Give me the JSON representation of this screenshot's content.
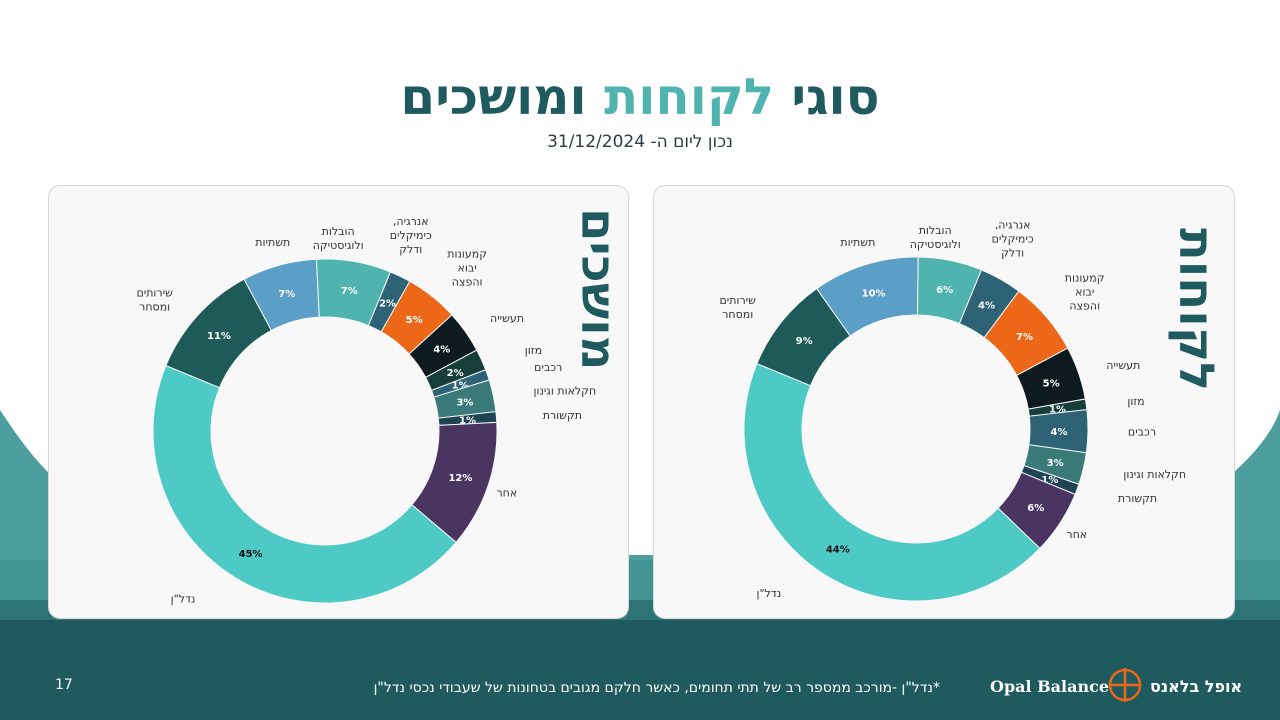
{
  "title": {
    "main": "סוגי",
    "accent": "לקוחות",
    "rest": "ומושכים"
  },
  "subtitle": "נכון ליום ה- 31/12/2024",
  "panels": {
    "left_title": "מושכים",
    "right_title": "לקוחות"
  },
  "footnote": "*נדל\"ן -מורכב ממספר רב של תתי תחומים, כאשר חלקם מגובים בטחונות של שעבודי נכסי נדל\"ן",
  "page_number": "17",
  "logo": {
    "en": "Opal Balance",
    "he": "אופל בלאנס"
  },
  "colors": {
    "title_dark": "#1e5a5e",
    "title_accent": "#4fb3b0",
    "footer_bg": "#1e5a5e"
  },
  "chart_data": [
    {
      "type": "pie",
      "name": "מושכים",
      "categories": [
        "אנרגיה, כימיקלים ודלק",
        "קמעונות יבוא והפצה",
        "תעשייה",
        "מזון",
        "רכבים",
        "חקלאות וגינון",
        "תקשורת",
        "אחר",
        "נדל\"ן",
        "שירותים ומסחר",
        "תשתיות",
        "הובלות ולוגיסטיקה"
      ],
      "label_lines": [
        [
          "אנרגיה,",
          "כימיקלים",
          "ודלק"
        ],
        [
          "קמעונות",
          "יבוא",
          "והפצה"
        ],
        [
          "תעשייה"
        ],
        [
          "מזון"
        ],
        [
          "רכבים"
        ],
        [
          "חקלאות וגינון"
        ],
        [
          "תקשורת"
        ],
        [
          "אחר"
        ],
        [
          "נדל\"ן"
        ],
        [
          "שירותים",
          "ומסחר"
        ],
        [
          "תשתיות"
        ],
        [
          "הובלות",
          "ולוגיסטיקה"
        ]
      ],
      "values": [
        2,
        5,
        4,
        2,
        1,
        3,
        1,
        12,
        45,
        11,
        7,
        7
      ],
      "data_labels": [
        "2%",
        "5%",
        "4%",
        "2%",
        "1%",
        "3%",
        "1%",
        "12%",
        "45%",
        "11%",
        "7%",
        "7%"
      ],
      "colors": [
        "#2e6377",
        "#ec6717",
        "#0f1a20",
        "#173f3a",
        "#2e6377",
        "#3a7a78",
        "#1e4454",
        "#4a3462",
        "#4ecac6",
        "#1e5a58",
        "#5b9ec6",
        "#4fb3b0"
      ],
      "label_colors": [
        "#ffffff",
        "#ffffff",
        "#ffffff",
        "#ffffff",
        "#ffffff",
        "#ffffff",
        "#ffffff",
        "#ffffff",
        "#111111",
        "#ffffff",
        "#ffffff",
        "#ffffff"
      ]
    },
    {
      "type": "pie",
      "name": "לקוחות",
      "categories": [
        "אנרגיה, כימיקלים ודלק",
        "קמעונות יבוא והפצה",
        "תעשייה",
        "מזון",
        "רכבים",
        "חקלאות וגינון",
        "תקשורת",
        "אחר",
        "נדל\"ן",
        "שירותים ומסחר",
        "תשתיות",
        "הובלות ולוגיסטיקה"
      ],
      "label_lines": [
        [
          "אנרגיה,",
          "כימיקלים",
          "ודלק"
        ],
        [
          "קמעונות",
          "יבוא",
          "והפצה"
        ],
        [
          "תעשייה"
        ],
        [
          "מזון"
        ],
        [
          "רכבים"
        ],
        [
          "חקלאות וגינון"
        ],
        [
          "תקשורת"
        ],
        [
          "אחר"
        ],
        [
          "נדל\"ן"
        ],
        [
          "שירותים",
          "ומסחר"
        ],
        [
          "תשתיות"
        ],
        [
          "הובלות",
          "ולוגיסטיקה"
        ]
      ],
      "values": [
        4,
        7,
        5,
        1,
        4,
        3,
        1,
        6,
        44,
        9,
        10,
        6
      ],
      "data_labels": [
        "4%",
        "7%",
        "5%",
        "1%",
        "4%",
        "3%",
        "1%",
        "6%",
        "44%",
        "9%",
        "10%",
        "6%"
      ],
      "colors": [
        "#2e6377",
        "#ec6717",
        "#0f1a20",
        "#173f3a",
        "#2e6377",
        "#3a7a78",
        "#1e4454",
        "#4a3462",
        "#4ecac6",
        "#1e5a58",
        "#5b9ec6",
        "#4fb3b0"
      ],
      "label_colors": [
        "#ffffff",
        "#ffffff",
        "#ffffff",
        "#ffffff",
        "#ffffff",
        "#ffffff",
        "#ffffff",
        "#ffffff",
        "#111111",
        "#ffffff",
        "#ffffff",
        "#ffffff"
      ]
    }
  ]
}
